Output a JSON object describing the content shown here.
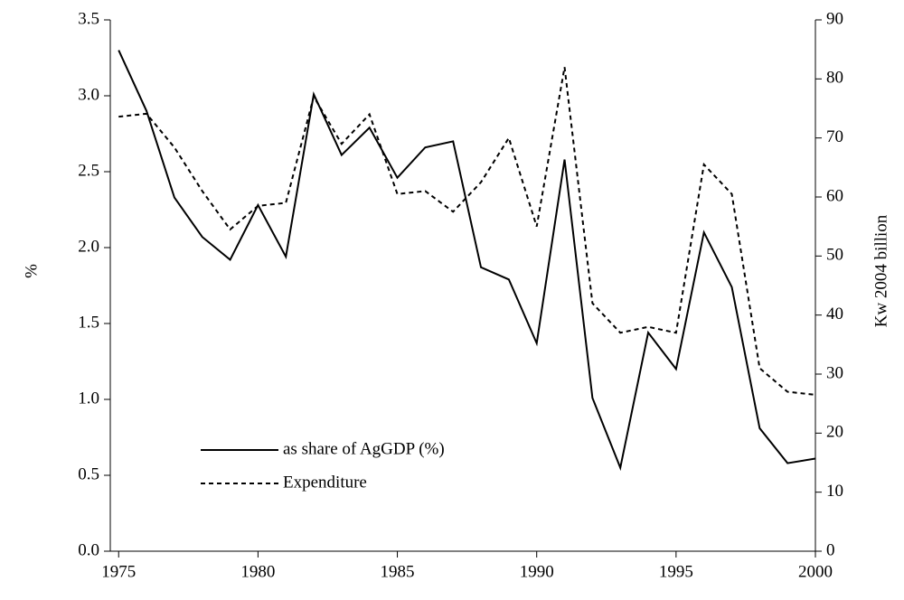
{
  "chart_data": {
    "type": "line",
    "y_label": "%",
    "y2_label": "Kw 2004 billion",
    "x": [
      1975,
      1976,
      1977,
      1978,
      1979,
      1980,
      1981,
      1982,
      1983,
      1984,
      1985,
      1986,
      1987,
      1988,
      1989,
      1990,
      1991,
      1992,
      1993,
      1994,
      1995,
      1996,
      1997,
      1998,
      1999,
      2000
    ],
    "series": [
      {
        "name": "as share of AgGDP (%)",
        "color": "#000000",
        "dash": "solid",
        "values": [
          3.3,
          2.9,
          2.33,
          2.07,
          1.92,
          2.28,
          1.94,
          3.01,
          2.61,
          2.79,
          2.46,
          2.66,
          2.7,
          1.87,
          1.79,
          1.37,
          2.58,
          1.01,
          0.55,
          1.44,
          1.2,
          2.1,
          1.74,
          0.81,
          0.58,
          0.61
        ]
      },
      {
        "name": "Expenditure",
        "color": "#000000",
        "dash": "dotted",
        "axis": "y2",
        "values": [
          73.6,
          74.1,
          68.4,
          61,
          54.5,
          58.5,
          59,
          77,
          69,
          74,
          60.5,
          61,
          57.5,
          62.5,
          70,
          55,
          82,
          42,
          37,
          38,
          37,
          65.5,
          60.5,
          31,
          27,
          26.5
        ]
      }
    ],
    "xlim": [
      1974.7,
      2000
    ],
    "xticks": [
      1975,
      1980,
      1985,
      1990,
      1995,
      2000
    ],
    "ylim": [
      0,
      3.5
    ],
    "yticks": [
      {
        "value": 0,
        "label": "0.0"
      },
      {
        "value": 0.5,
        "label": "0.5"
      },
      {
        "value": 1,
        "label": "1.0"
      },
      {
        "value": 1.5,
        "label": "1.5"
      },
      {
        "value": 2,
        "label": "2.0"
      },
      {
        "value": 2.5,
        "label": "2.5"
      },
      {
        "value": 3,
        "label": "3.0"
      },
      {
        "value": 3.5,
        "label": "3.5"
      }
    ],
    "y2lim": [
      0,
      90
    ],
    "y2ticks": [
      0,
      10,
      20,
      30,
      40,
      50,
      60,
      70,
      80,
      90
    ],
    "grid": false
  }
}
